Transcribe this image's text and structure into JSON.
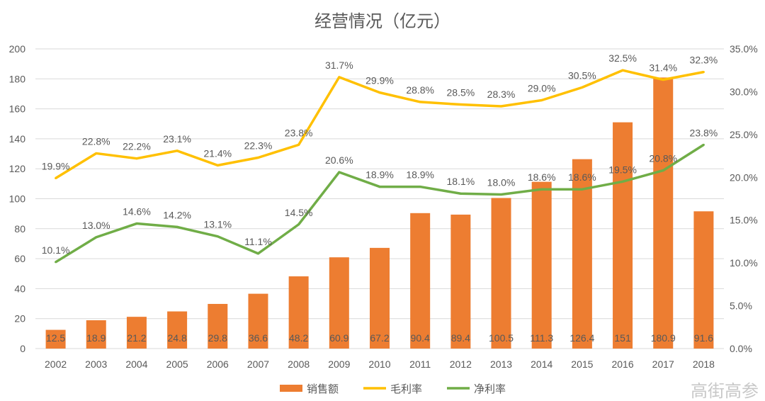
{
  "chart_data": {
    "type": "bar+line",
    "title": "经营情况（亿元）",
    "categories": [
      "2002",
      "2003",
      "2004",
      "2005",
      "2006",
      "2007",
      "2008",
      "2009",
      "2010",
      "2011",
      "2012",
      "2013",
      "2014",
      "2015",
      "2016",
      "2017",
      "2018"
    ],
    "y_left": {
      "range": [
        0,
        200
      ],
      "ticks": [
        "0",
        "20",
        "40",
        "60",
        "80",
        "100",
        "120",
        "140",
        "160",
        "180",
        "200"
      ]
    },
    "y_right": {
      "range": [
        0,
        35
      ],
      "ticks": [
        "0.0%",
        "5.0%",
        "10.0%",
        "15.0%",
        "20.0%",
        "25.0%",
        "30.0%",
        "35.0%"
      ]
    },
    "grid": true,
    "legend_position": "bottom",
    "series": [
      {
        "name": "销售额",
        "type": "bar",
        "axis": "left",
        "color": "#ED7D31",
        "values": [
          12.5,
          18.9,
          21.2,
          24.8,
          29.8,
          36.6,
          48.2,
          60.9,
          67.2,
          90.4,
          89.4,
          100.5,
          111.3,
          126.4,
          151,
          180.9,
          91.6
        ],
        "labels": [
          "12.5",
          "18.9",
          "21.2",
          "24.8",
          "29.8",
          "36.6",
          "48.2",
          "60.9",
          "67.2",
          "90.4",
          "89.4",
          "100.5",
          "111.3",
          "126.4",
          "151",
          "180.9",
          "91.6"
        ]
      },
      {
        "name": "毛利率",
        "type": "line",
        "axis": "right",
        "color": "#FFC000",
        "values": [
          19.9,
          22.8,
          22.2,
          23.1,
          21.4,
          22.3,
          23.8,
          31.7,
          29.9,
          28.8,
          28.5,
          28.3,
          29.0,
          30.5,
          32.5,
          31.4,
          32.3
        ],
        "labels": [
          "19.9%",
          "22.8%",
          "22.2%",
          "23.1%",
          "21.4%",
          "22.3%",
          "23.8%",
          "31.7%",
          "29.9%",
          "28.8%",
          "28.5%",
          "28.3%",
          "29.0%",
          "30.5%",
          "32.5%",
          "31.4%",
          "32.3%"
        ]
      },
      {
        "name": "净利率",
        "type": "line",
        "axis": "right",
        "color": "#70AD47",
        "values": [
          10.1,
          13.0,
          14.6,
          14.2,
          13.1,
          11.1,
          14.5,
          20.6,
          18.9,
          18.9,
          18.1,
          18.0,
          18.6,
          18.6,
          19.5,
          20.8,
          23.8
        ],
        "labels": [
          "10.1%",
          "13.0%",
          "14.6%",
          "14.2%",
          "13.1%",
          "11.1%",
          "14.5%",
          "20.6%",
          "18.9%",
          "18.9%",
          "18.1%",
          "18.0%",
          "18.6%",
          "18.6%",
          "19.5%",
          "20.8%",
          "23.8%"
        ]
      }
    ]
  },
  "watermark": "高街高参"
}
